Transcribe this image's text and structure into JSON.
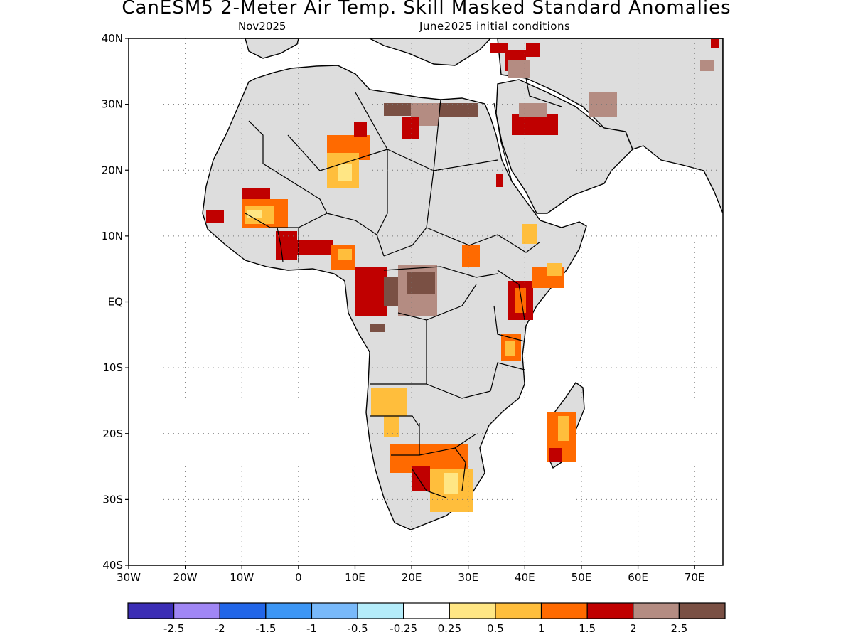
{
  "title": "CanESM5 2-Meter Air Temp. Skill Masked Standard Anomalies",
  "subtitle_left": "Nov2025",
  "subtitle_right": "June2025 initial conditions",
  "map": {
    "lon_range": [
      -30,
      75
    ],
    "lat_range": [
      -40,
      40
    ],
    "lat_ticks": [
      "40N",
      "30N",
      "20N",
      "10N",
      "EQ",
      "10S",
      "20S",
      "30S",
      "40S"
    ],
    "lon_ticks": [
      "30W",
      "20W",
      "10W",
      "0",
      "10E",
      "20E",
      "30E",
      "40E",
      "50E",
      "60E",
      "70E"
    ],
    "grid": "dotted",
    "land_fill": "#dddddd",
    "ocean_fill": "#ffffff"
  },
  "colorbar": {
    "colors": [
      "#3b2db5",
      "#a086f5",
      "#2266e8",
      "#3c96f5",
      "#78b9fa",
      "#b4ecfa",
      "#ffffff",
      "#ffe684",
      "#ffbe3c",
      "#ff6a00",
      "#c00000",
      "#b48c82",
      "#7a5044"
    ],
    "labels": [
      "-2.5",
      "-2",
      "-1.5",
      "-1",
      "-0.5",
      "-0.25",
      "0.25",
      "0.5",
      "1",
      "1.5",
      "2",
      "2.5"
    ]
  },
  "anomaly_regions": [
    {
      "name": "west-africa-sahel",
      "level": "0.5-2"
    },
    {
      "name": "gulf-of-guinea-coast",
      "level": "2"
    },
    {
      "name": "central-africa",
      "level": "2-2.5"
    },
    {
      "name": "libya-egypt",
      "level": "2.5"
    },
    {
      "name": "horn-of-africa",
      "level": "1-2"
    },
    {
      "name": "southern-africa",
      "level": "0.5-2"
    },
    {
      "name": "madagascar",
      "level": "0.5-2"
    },
    {
      "name": "arabia",
      "level": "2-2.5"
    }
  ]
}
